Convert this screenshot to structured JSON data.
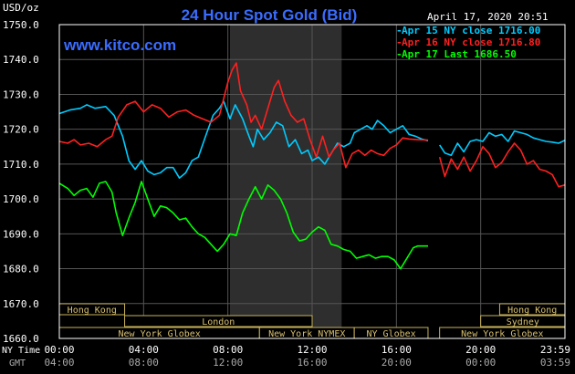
{
  "chart_data": {
    "type": "line",
    "title": "24 Hour Spot Gold (Bid)",
    "ylabel": "USD/oz",
    "watermark": "www.kitco.com",
    "date_label": "April 17, 2020 20:51",
    "ylim": [
      1660,
      1750
    ],
    "y_ticks": [
      "1750.0",
      "1740.0",
      "1730.0",
      "1720.0",
      "1710.0",
      "1700.0",
      "1690.0",
      "1680.0",
      "1670.0",
      "1660.0"
    ],
    "x_row_labels": {
      "ny": "NY Time",
      "gmt": "GMT"
    },
    "x_ticks_ny": [
      "00:00",
      "04:00",
      "08:00",
      "12:00",
      "16:00",
      "20:00",
      "23:59"
    ],
    "x_ticks_gmt": [
      "04:00",
      "08:00",
      "12:00",
      "16:00",
      "20:00",
      "00:00",
      "03:59"
    ],
    "legend": [
      {
        "text": "Apr 15 NY close 1716.00",
        "color": "#00ccff"
      },
      {
        "text": "Apr 16 NY close 1716.80",
        "color": "#ff2020"
      },
      {
        "text": "Apr 17 Last 1686.50",
        "color": "#00ff00"
      }
    ],
    "x_hours_range": [
      0,
      24
    ],
    "shaded_hours": [
      8.1,
      13.4
    ],
    "gap_hours": [
      17.5,
      18.05
    ],
    "series": [
      {
        "name": "Apr 15 NY close 1716.00",
        "color": "#00ccff",
        "points": [
          [
            0,
            1724.5
          ],
          [
            0.5,
            1725.5
          ],
          [
            1,
            1726
          ],
          [
            1.3,
            1727
          ],
          [
            1.7,
            1726
          ],
          [
            2.2,
            1726.5
          ],
          [
            2.6,
            1724
          ],
          [
            3,
            1718
          ],
          [
            3.3,
            1711
          ],
          [
            3.6,
            1708.5
          ],
          [
            3.9,
            1711
          ],
          [
            4.2,
            1708
          ],
          [
            4.5,
            1707
          ],
          [
            4.8,
            1707.5
          ],
          [
            5.1,
            1709
          ],
          [
            5.4,
            1709
          ],
          [
            5.7,
            1706
          ],
          [
            6.0,
            1707.5
          ],
          [
            6.3,
            1711
          ],
          [
            6.6,
            1712
          ],
          [
            7.0,
            1719
          ],
          [
            7.3,
            1724
          ],
          [
            7.6,
            1726
          ],
          [
            7.8,
            1728
          ],
          [
            8.1,
            1723
          ],
          [
            8.35,
            1727
          ],
          [
            8.7,
            1723
          ],
          [
            9.0,
            1718
          ],
          [
            9.2,
            1715
          ],
          [
            9.4,
            1720
          ],
          [
            9.7,
            1717
          ],
          [
            10.0,
            1719
          ],
          [
            10.3,
            1722
          ],
          [
            10.6,
            1721
          ],
          [
            10.9,
            1715
          ],
          [
            11.2,
            1717
          ],
          [
            11.5,
            1713
          ],
          [
            11.8,
            1714
          ],
          [
            12.0,
            1711
          ],
          [
            12.3,
            1712
          ],
          [
            12.6,
            1710
          ],
          [
            12.9,
            1713
          ],
          [
            13.2,
            1716
          ],
          [
            13.5,
            1715
          ],
          [
            13.8,
            1716
          ],
          [
            14.0,
            1719
          ],
          [
            14.3,
            1720
          ],
          [
            14.6,
            1721
          ],
          [
            14.85,
            1720
          ],
          [
            15.1,
            1722.5
          ],
          [
            15.4,
            1721
          ],
          [
            15.7,
            1719
          ],
          [
            16.0,
            1720
          ],
          [
            16.3,
            1721
          ],
          [
            16.6,
            1718.5
          ],
          [
            16.9,
            1718
          ],
          [
            17.2,
            1717.2
          ],
          [
            17.5,
            1716.7
          ],
          [
            18.05,
            1715.5
          ],
          [
            18.3,
            1713.2
          ],
          [
            18.6,
            1712.5
          ],
          [
            18.9,
            1716
          ],
          [
            19.2,
            1713.5
          ],
          [
            19.5,
            1716.5
          ],
          [
            19.8,
            1717
          ],
          [
            20.1,
            1716.5
          ],
          [
            20.4,
            1719
          ],
          [
            20.7,
            1718
          ],
          [
            21.0,
            1718.5
          ],
          [
            21.3,
            1716.5
          ],
          [
            21.6,
            1719.5
          ],
          [
            21.9,
            1719
          ],
          [
            22.2,
            1718.5
          ],
          [
            22.5,
            1717.5
          ],
          [
            22.8,
            1717
          ],
          [
            23.1,
            1716.5
          ],
          [
            23.4,
            1716.3
          ],
          [
            23.7,
            1716
          ],
          [
            23.99,
            1716.8
          ]
        ]
      },
      {
        "name": "Apr 16 NY close 1716.80",
        "color": "#ff2020",
        "points": [
          [
            0,
            1716.5
          ],
          [
            0.4,
            1716
          ],
          [
            0.7,
            1717
          ],
          [
            1.0,
            1715.5
          ],
          [
            1.4,
            1716
          ],
          [
            1.8,
            1715
          ],
          [
            2.2,
            1717
          ],
          [
            2.5,
            1718
          ],
          [
            2.8,
            1723.5
          ],
          [
            3.2,
            1727
          ],
          [
            3.6,
            1728
          ],
          [
            4.0,
            1725
          ],
          [
            4.4,
            1727
          ],
          [
            4.8,
            1726
          ],
          [
            5.2,
            1723.5
          ],
          [
            5.6,
            1725
          ],
          [
            6.0,
            1725.5
          ],
          [
            6.4,
            1724
          ],
          [
            6.8,
            1723
          ],
          [
            7.2,
            1722
          ],
          [
            7.6,
            1724
          ],
          [
            8.0,
            1733.5
          ],
          [
            8.2,
            1737
          ],
          [
            8.4,
            1739
          ],
          [
            8.6,
            1731
          ],
          [
            8.9,
            1727
          ],
          [
            9.1,
            1722
          ],
          [
            9.3,
            1724
          ],
          [
            9.6,
            1720
          ],
          [
            9.9,
            1726
          ],
          [
            10.2,
            1732
          ],
          [
            10.4,
            1734
          ],
          [
            10.7,
            1728
          ],
          [
            11.0,
            1724
          ],
          [
            11.3,
            1722
          ],
          [
            11.6,
            1723
          ],
          [
            11.9,
            1717
          ],
          [
            12.2,
            1712
          ],
          [
            12.5,
            1718
          ],
          [
            12.8,
            1712
          ],
          [
            13.0,
            1714
          ],
          [
            13.3,
            1716
          ],
          [
            13.6,
            1709
          ],
          [
            13.9,
            1713
          ],
          [
            14.2,
            1714
          ],
          [
            14.5,
            1712.5
          ],
          [
            14.8,
            1714
          ],
          [
            15.1,
            1713
          ],
          [
            15.4,
            1712.5
          ],
          [
            15.7,
            1714.5
          ],
          [
            16.0,
            1715.5
          ],
          [
            16.3,
            1717.5
          ],
          [
            16.6,
            1717.2
          ],
          [
            17.0,
            1717
          ],
          [
            17.5,
            1716.9
          ],
          [
            18.05,
            1712
          ],
          [
            18.3,
            1706.5
          ],
          [
            18.6,
            1711.5
          ],
          [
            18.9,
            1708.5
          ],
          [
            19.2,
            1712
          ],
          [
            19.5,
            1708
          ],
          [
            19.8,
            1711
          ],
          [
            20.1,
            1715
          ],
          [
            20.4,
            1713
          ],
          [
            20.7,
            1709
          ],
          [
            21.0,
            1710.5
          ],
          [
            21.3,
            1713.5
          ],
          [
            21.6,
            1716
          ],
          [
            21.9,
            1714
          ],
          [
            22.2,
            1710
          ],
          [
            22.5,
            1711
          ],
          [
            22.8,
            1708.5
          ],
          [
            23.1,
            1708
          ],
          [
            23.4,
            1707
          ],
          [
            23.7,
            1703.5
          ],
          [
            23.99,
            1704
          ]
        ]
      },
      {
        "name": "Apr 17 Last 1686.50",
        "color": "#00ff00",
        "points": [
          [
            0,
            1704.5
          ],
          [
            0.4,
            1703
          ],
          [
            0.7,
            1701
          ],
          [
            1.0,
            1702.5
          ],
          [
            1.3,
            1703
          ],
          [
            1.6,
            1700.5
          ],
          [
            1.9,
            1704.5
          ],
          [
            2.2,
            1705
          ],
          [
            2.5,
            1702
          ],
          [
            2.7,
            1696
          ],
          [
            3.0,
            1689.5
          ],
          [
            3.3,
            1694.5
          ],
          [
            3.6,
            1699
          ],
          [
            3.9,
            1705
          ],
          [
            4.2,
            1700
          ],
          [
            4.5,
            1695
          ],
          [
            4.8,
            1698
          ],
          [
            5.1,
            1697.5
          ],
          [
            5.4,
            1696
          ],
          [
            5.7,
            1694
          ],
          [
            6.0,
            1694.5
          ],
          [
            6.3,
            1692
          ],
          [
            6.6,
            1690
          ],
          [
            6.9,
            1689
          ],
          [
            7.2,
            1687
          ],
          [
            7.5,
            1685
          ],
          [
            7.8,
            1687
          ],
          [
            8.1,
            1690
          ],
          [
            8.4,
            1689.5
          ],
          [
            8.7,
            1696
          ],
          [
            9.0,
            1700
          ],
          [
            9.3,
            1703.5
          ],
          [
            9.6,
            1700
          ],
          [
            9.9,
            1704
          ],
          [
            10.2,
            1702.5
          ],
          [
            10.5,
            1700
          ],
          [
            10.8,
            1696
          ],
          [
            11.1,
            1690.5
          ],
          [
            11.4,
            1688
          ],
          [
            11.7,
            1688.5
          ],
          [
            12.0,
            1690.5
          ],
          [
            12.3,
            1692
          ],
          [
            12.6,
            1691
          ],
          [
            12.9,
            1687
          ],
          [
            13.2,
            1686.5
          ],
          [
            13.5,
            1685.5
          ],
          [
            13.8,
            1685
          ],
          [
            14.1,
            1683
          ],
          [
            14.4,
            1683.5
          ],
          [
            14.7,
            1684
          ],
          [
            15.0,
            1683
          ],
          [
            15.3,
            1683.5
          ],
          [
            15.6,
            1683.5
          ],
          [
            15.9,
            1682.5
          ],
          [
            16.2,
            1680
          ],
          [
            16.5,
            1683
          ],
          [
            16.8,
            1686
          ],
          [
            17.0,
            1686.5
          ],
          [
            17.5,
            1686.5
          ]
        ]
      }
    ],
    "session_bars": [
      {
        "label": "Hong Kong",
        "start": 0,
        "end": 3.1,
        "row": 0
      },
      {
        "label": "London",
        "start": 3.1,
        "end": 12,
        "row": 1
      },
      {
        "label": "New York Globex",
        "start": 0,
        "end": 9.5,
        "row": 2
      },
      {
        "label": "New York NYMEX",
        "start": 9.5,
        "end": 14,
        "row": 2
      },
      {
        "label": "NY Globex",
        "start": 14,
        "end": 17.5,
        "row": 2
      },
      {
        "label": "Hong Kong",
        "start": 20.9,
        "end": 24,
        "row": 0
      },
      {
        "label": "Sydney",
        "start": 20,
        "end": 24,
        "row": 1
      },
      {
        "label": "New York Globex",
        "start": 18.05,
        "end": 24,
        "row": 2
      }
    ]
  }
}
